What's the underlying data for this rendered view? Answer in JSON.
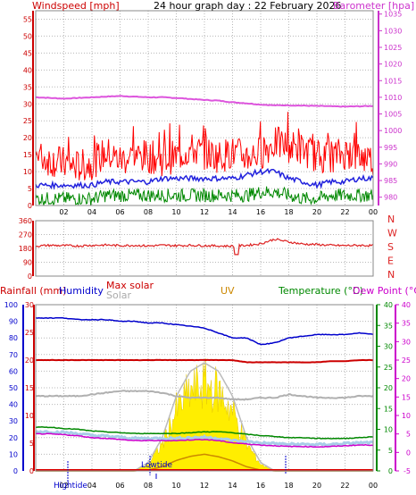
{
  "header": {
    "wind_label": "Windspeed [mph]",
    "title": "24 hour graph day : 22 February 2026",
    "baro_label": "Barometer [hpa]"
  },
  "direction_labels": [
    "N",
    "W",
    "S",
    "E",
    "N"
  ],
  "bottom_header": {
    "rain_label": "Rainfall (mm)",
    "humidity_label": "Humidity",
    "maxsolar_label": "Max solar",
    "solar_label": "Solar",
    "uv_label": "UV",
    "temp_label": "Temperature (°C)",
    "dew_label": "Dew Point (°C)"
  },
  "markers": {
    "high_tide": "Hightide",
    "low_tide": "Lowtide"
  },
  "colors": {
    "wind_axis": "#cc0000",
    "baro_axis": "#cc33cc",
    "wind": "#ff0000",
    "gust_avg": "#2222dd",
    "wind_low": "#008800",
    "barometer": "#dd55dd",
    "direction": "#dd2222",
    "rain_axis": "#cc0000",
    "humidity_axis": "#0000cc",
    "temp_axis": "#008800",
    "dew_axis": "#cc00cc",
    "solar": "#b0b0b0",
    "uv": "#cc8800",
    "max_solar": "#bbbbbb",
    "solar_fill": "#ffee00",
    "grid": "#b8b8b8"
  },
  "chart_data": [
    {
      "type": "line",
      "title": "24 hour graph day : 22 February 2026",
      "x_ticks": [
        "02",
        "04",
        "06",
        "08",
        "10",
        "12",
        "14",
        "16",
        "18",
        "20",
        "22",
        "00"
      ],
      "y_left": {
        "label": "Windspeed [mph]",
        "ticks": [
          0,
          5,
          10,
          15,
          20,
          25,
          30,
          35,
          40,
          45,
          50,
          55
        ],
        "range": [
          0,
          57.5
        ]
      },
      "y_right": {
        "label": "Barometer [hpa]",
        "ticks": [
          980,
          985,
          990,
          995,
          1000,
          1005,
          1010,
          1015,
          1020,
          1025,
          1030,
          1035
        ],
        "range": [
          977.5,
          1036
        ]
      },
      "series": [
        {
          "axis": "left",
          "values": [
            14,
            13,
            12,
            11,
            12,
            15,
            13,
            14,
            14,
            13,
            14,
            16,
            15,
            14,
            15,
            14,
            15,
            18,
            17,
            16,
            14,
            14,
            15,
            14,
            13
          ]
        },
        {
          "axis": "left",
          "values": [
            6,
            6,
            6,
            6,
            6,
            7,
            7,
            7,
            7,
            8,
            8,
            8,
            8,
            8,
            8,
            9,
            10,
            10,
            8,
            7,
            6,
            7,
            7,
            8,
            8
          ]
        },
        {
          "axis": "left",
          "values": [
            2,
            2,
            2,
            2,
            2,
            3,
            3,
            3,
            3,
            3,
            3,
            3,
            3,
            3,
            3,
            3,
            4,
            4,
            3,
            2,
            2,
            3,
            3,
            3,
            3
          ]
        },
        {
          "axis": "right",
          "values": [
            1010,
            1009.8,
            1009.6,
            1009.8,
            1010,
            1010.2,
            1010.4,
            1010.2,
            1010,
            1010,
            1009.8,
            1009.5,
            1009.2,
            1009,
            1008.5,
            1008.2,
            1007.8,
            1007.6,
            1007.6,
            1007.5,
            1007.4,
            1007.3,
            1007.2,
            1007.3,
            1007.4
          ]
        }
      ]
    },
    {
      "type": "line",
      "y_left": {
        "ticks": [
          0,
          90,
          180,
          270,
          360
        ],
        "range": [
          0,
          360
        ]
      },
      "y_right_labels": [
        "N",
        "W",
        "S",
        "E",
        "N"
      ],
      "series": [
        {
          "values": [
            195,
            200,
            198,
            196,
            200,
            202,
            198,
            200,
            196,
            200,
            198,
            200,
            198,
            196,
            195,
            200,
            210,
            240,
            222,
            208,
            205,
            200,
            198,
            200,
            198
          ]
        }
      ]
    },
    {
      "type": "line",
      "x_ticks": [
        "02",
        "04",
        "06",
        "08",
        "10",
        "12",
        "14",
        "16",
        "18",
        "20",
        "22",
        "00"
      ],
      "axes": {
        "humidity": {
          "label": "Humidity",
          "ticks": [
            0,
            10,
            20,
            30,
            40,
            50,
            60,
            70,
            80,
            90,
            100
          ],
          "range": [
            0,
            100
          ]
        },
        "rainfall": {
          "label": "Rainfall (mm)",
          "ticks": [
            0,
            5,
            10,
            15,
            20,
            25,
            30
          ],
          "range": [
            0,
            30
          ]
        },
        "temperature": {
          "label": "Temperature (°C)",
          "ticks": [
            0,
            5,
            10,
            15,
            20,
            25,
            30,
            35,
            40
          ],
          "range": [
            0,
            40
          ]
        },
        "dew_point": {
          "label": "Dew Point (°C)",
          "ticks": [
            -5,
            0,
            5,
            10,
            15,
            20,
            25,
            30,
            35,
            40
          ],
          "range": [
            -5,
            40
          ]
        }
      },
      "series": [
        {
          "name": "Humidity",
          "values": [
            92,
            92,
            92,
            91,
            91,
            91,
            90,
            90,
            89,
            89,
            88,
            87,
            86,
            83,
            80,
            80,
            76,
            77,
            80,
            81,
            82,
            82,
            82,
            83,
            82
          ]
        },
        {
          "name": "Rainfall (mm)",
          "values": [
            20,
            20,
            20,
            20,
            20,
            20,
            20,
            20,
            20,
            20,
            20,
            20,
            20,
            20,
            20,
            19.6,
            19.6,
            19.6,
            19.6,
            19.6,
            19.6,
            19.8,
            19.8,
            20,
            20
          ]
        },
        {
          "name": "Temperature (°C)",
          "values": [
            10.5,
            10.5,
            10.2,
            10,
            9.6,
            9.4,
            9.2,
            9,
            9,
            9,
            9,
            9.2,
            9.4,
            9.4,
            9.2,
            8.8,
            8.5,
            8.3,
            8,
            8,
            7.8,
            7.8,
            7.8,
            8,
            8.2
          ]
        },
        {
          "name": "Dew Point (°C)",
          "values": [
            5,
            5,
            4.8,
            4.5,
            4,
            3.8,
            3.5,
            3.2,
            3.2,
            3.2,
            3.2,
            3.4,
            3.5,
            3.2,
            2.6,
            2.3,
            2,
            1.8,
            1.6,
            1.6,
            1.5,
            1.6,
            1.8,
            2,
            2
          ]
        },
        {
          "name": "Solar",
          "values": [
            45,
            45,
            45,
            45,
            46,
            47,
            48,
            48,
            48,
            47,
            45,
            44,
            44,
            44,
            43,
            43,
            44,
            44,
            46,
            45,
            44,
            44,
            44,
            45,
            45
          ]
        },
        {
          "name": "Max solar",
          "values": [
            0,
            0,
            0,
            0,
            0,
            0,
            0,
            0,
            2,
            8,
            18,
            24,
            26,
            24,
            18,
            8,
            2,
            0,
            0,
            0,
            0,
            0,
            0,
            0,
            0
          ]
        },
        {
          "name": "UV",
          "values": [
            0,
            0,
            0,
            0,
            0,
            0,
            0,
            0,
            0.2,
            1,
            2.5,
            3.5,
            4,
            3.4,
            2.4,
            1,
            0.2,
            0,
            0,
            0,
            0,
            0,
            0,
            0,
            0
          ]
        }
      ]
    }
  ]
}
